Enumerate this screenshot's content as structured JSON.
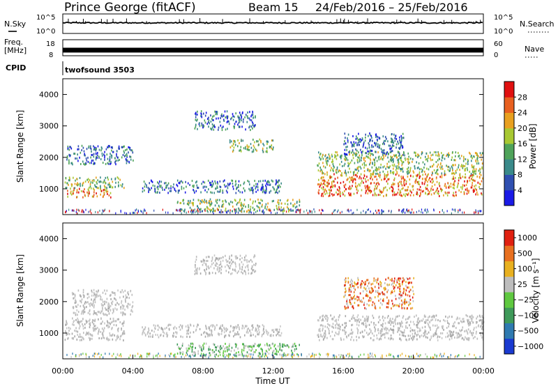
{
  "header": {
    "station": "Prince George (fitACF)",
    "beam": "Beam 15",
    "date_range": "24/Feb/2016 – 25/Feb/2016"
  },
  "strips": {
    "nsky_label": "N.Sky",
    "nsearch_label": "N.Search",
    "noise_ticks": [
      "10^5",
      "10^0"
    ],
    "freq_label_top": "Freq.",
    "freq_label_unit": "[MHz]",
    "freq_ticks": [
      "18",
      "8"
    ],
    "nave_label": "Nave",
    "nave_ticks": [
      "60",
      "0"
    ],
    "cpid_label": "CPID",
    "cpid_value": "twofsound 3503",
    "noise_trace_log_level": 1.3,
    "freq_fill_range_mhz": [
      10,
      13
    ]
  },
  "chart_data": [
    {
      "type": "heatmap",
      "name": "power",
      "xlabel": "",
      "ylabel": "Slant Range [km]",
      "xlim": [
        0,
        24
      ],
      "ylim": [
        180,
        4500
      ],
      "yticks": [
        1000,
        2000,
        3000,
        4000
      ],
      "colorbar": {
        "label": "Power [dB]",
        "ticks": [
          "4",
          "8",
          "12",
          "16",
          "20",
          "24",
          "28"
        ],
        "colors": [
          "#1a1ae6",
          "#2f4fb0",
          "#3a8a8a",
          "#4fa35a",
          "#a8c832",
          "#e8a020",
          "#e86020",
          "#e01010"
        ]
      },
      "regions": [
        {
          "x": [
            0.2,
            2.8
          ],
          "y": [
            750,
            1050
          ],
          "level": "high"
        },
        {
          "x": [
            0.1,
            3.5
          ],
          "y": [
            1050,
            1400
          ],
          "level": "mid"
        },
        {
          "x": [
            0.2,
            4.0
          ],
          "y": [
            1800,
            2400
          ],
          "level": "low"
        },
        {
          "x": [
            7.5,
            11.0
          ],
          "y": [
            2900,
            3500
          ],
          "level": "low"
        },
        {
          "x": [
            9.5,
            12.0
          ],
          "y": [
            2200,
            2600
          ],
          "level": "mid"
        },
        {
          "x": [
            4.5,
            12.5
          ],
          "y": [
            900,
            1300
          ],
          "level": "low"
        },
        {
          "x": [
            6.5,
            13.5
          ],
          "y": [
            300,
            700
          ],
          "level": "mid"
        },
        {
          "x": [
            14.5,
            24.0
          ],
          "y": [
            800,
            1500
          ],
          "level": "high"
        },
        {
          "x": [
            14.5,
            24.0
          ],
          "y": [
            1500,
            2200
          ],
          "level": "mid"
        },
        {
          "x": [
            16.0,
            19.5
          ],
          "y": [
            2100,
            2800
          ],
          "level": "low"
        }
      ]
    },
    {
      "type": "heatmap",
      "name": "velocity",
      "xlabel": "Time UT",
      "ylabel": "Slant Range [km]",
      "xlim": [
        0,
        24
      ],
      "ylim": [
        180,
        4500
      ],
      "yticks": [
        1000,
        2000,
        3000,
        4000
      ],
      "xticks": [
        "00:00",
        "04:00",
        "08:00",
        "12:00",
        "16:00",
        "20:00",
        "00:00"
      ],
      "colorbar": {
        "label": "Velocity [m s⁻¹]",
        "ticks": [
          "1000",
          "500",
          "100",
          "25",
          "−25",
          "−100",
          "−500",
          "−1000"
        ],
        "colors": [
          "#1a3ad0",
          "#2f7ab0",
          "#3f9a5a",
          "#5fc840",
          "#bdbdbd",
          "#e8b020",
          "#e87020",
          "#e02010"
        ]
      },
      "regions": [
        {
          "x": [
            0.1,
            3.5
          ],
          "y": [
            800,
            1500
          ],
          "level": "gray"
        },
        {
          "x": [
            0.5,
            4.0
          ],
          "y": [
            1600,
            2400
          ],
          "level": "gray"
        },
        {
          "x": [
            4.5,
            12.5
          ],
          "y": [
            900,
            1300
          ],
          "level": "gray"
        },
        {
          "x": [
            7.5,
            11.0
          ],
          "y": [
            2900,
            3500
          ],
          "level": "gray"
        },
        {
          "x": [
            6.5,
            13.5
          ],
          "y": [
            300,
            700
          ],
          "level": "green"
        },
        {
          "x": [
            14.5,
            24.0
          ],
          "y": [
            800,
            1600
          ],
          "level": "gray"
        },
        {
          "x": [
            16.0,
            20.0
          ],
          "y": [
            1800,
            2800
          ],
          "level": "orange"
        }
      ]
    }
  ]
}
